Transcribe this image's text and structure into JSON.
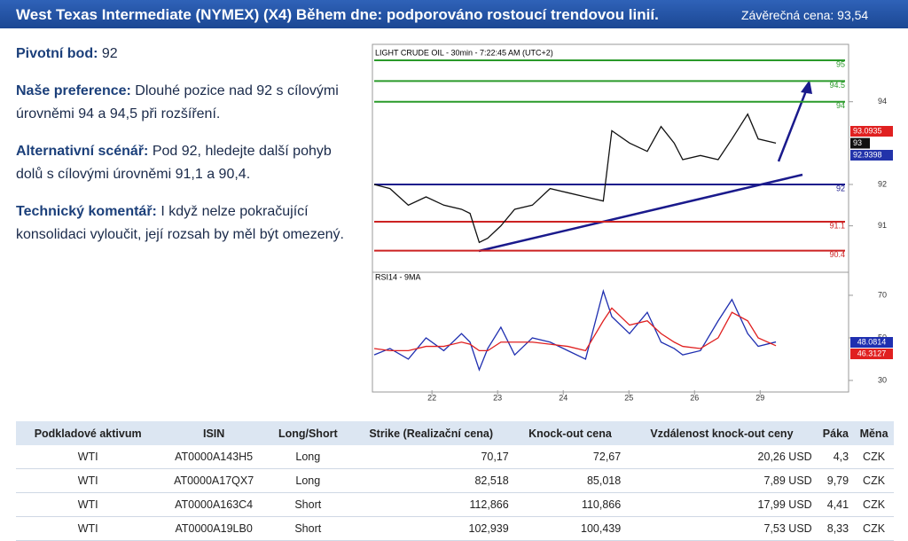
{
  "header": {
    "title": "West Texas Intermediate (NYMEX) (X4) Během dne: podporováno rostoucí trendovou linií.",
    "close": "Závěrečná cena: 93,54"
  },
  "commentary": [
    {
      "label": "Pivotní bod:",
      "text": "92"
    },
    {
      "label": "Naše preference:",
      "text": "Dlouhé pozice nad 92 s cílovými úrovněmi 94 a 94,5 při  rozšíření."
    },
    {
      "label": "Alternativní scénář:",
      "text": "Pod 92, hledejte další pohyb dolů s cílovými úrovněmi 91,1 a 90,4."
    },
    {
      "label": "Technický komentář:",
      "text": "I když nelze pokračující konsolidaci vyloučit, její rozsah by měl být omezený."
    }
  ],
  "chart_data": [
    {
      "type": "line",
      "title": "LIGHT CRUDE OIL - 30min - 7:22:45 AM (UTC+2)",
      "x": [
        0.12,
        0.36,
        0.64,
        0.91,
        1.18,
        1.45,
        1.58,
        1.72,
        1.85,
        2.05,
        2.26,
        2.53,
        2.8,
        3.07,
        3.34,
        3.61,
        3.74,
        4.01,
        4.28,
        4.49,
        4.69,
        4.82,
        5.09,
        5.36,
        5.57,
        5.81,
        5.97,
        6.24
      ],
      "series": [
        {
          "color": "#111111",
          "values": [
            92.0,
            91.9,
            91.5,
            91.7,
            91.5,
            91.4,
            91.3,
            90.6,
            90.7,
            91.0,
            91.4,
            91.5,
            91.9,
            91.8,
            91.7,
            91.6,
            93.3,
            93.0,
            92.8,
            93.4,
            93.0,
            92.6,
            92.7,
            92.6,
            93.1,
            93.7,
            93.1,
            93.0
          ]
        }
      ],
      "xlim": [
        0.12,
        7.32
      ],
      "ylim": [
        89.92,
        95.28
      ],
      "yticks": [
        91,
        92,
        94
      ],
      "levels": [
        {
          "value": 95,
          "color": "#2a9a2a"
        },
        {
          "value": 94.5,
          "color": "#2a9a2a"
        },
        {
          "value": 94,
          "color": "#2a9a2a"
        },
        {
          "value": 92,
          "color": "#1a1a8c"
        },
        {
          "value": 91.1,
          "color": "#cc2222"
        },
        {
          "value": 90.4,
          "color": "#cc2222"
        }
      ],
      "price_labels": [
        {
          "value": 93.0935,
          "color": "#e02020"
        },
        {
          "value": 93,
          "color": "#111111"
        },
        {
          "value": 92.9398,
          "color": "#2233aa"
        }
      ]
    },
    {
      "type": "line",
      "title": "RSI14 - 9MA",
      "x": [
        0.12,
        0.36,
        0.64,
        0.91,
        1.18,
        1.45,
        1.58,
        1.72,
        1.85,
        2.05,
        2.26,
        2.53,
        2.8,
        3.07,
        3.34,
        3.61,
        3.74,
        4.01,
        4.28,
        4.49,
        4.69,
        4.82,
        5.09,
        5.36,
        5.57,
        5.81,
        5.97,
        6.24
      ],
      "series": [
        {
          "color": "#1f2fb0",
          "values": [
            42,
            45,
            40,
            50,
            44,
            52,
            48,
            35,
            45,
            55,
            42,
            50,
            48,
            44,
            40,
            72,
            60,
            52,
            62,
            48,
            45,
            42,
            44,
            58,
            68,
            52,
            46,
            48.0814
          ]
        },
        {
          "color": "#e02020",
          "values": [
            45,
            44,
            44,
            46,
            46,
            48,
            47,
            44,
            44,
            48,
            48,
            48,
            47,
            46,
            44,
            58,
            64,
            56,
            58,
            52,
            48,
            46,
            45,
            50,
            62,
            58,
            50,
            46.3127
          ]
        }
      ],
      "xlim": [
        0.12,
        7.32
      ],
      "ylim": [
        25.4,
        80.4
      ],
      "yticks": [
        30,
        50,
        70
      ],
      "xticks": [
        {
          "value": 1,
          "label": "22"
        },
        {
          "value": 2,
          "label": "23"
        },
        {
          "value": 3,
          "label": "24"
        },
        {
          "value": 4,
          "label": "25"
        },
        {
          "value": 5,
          "label": "26"
        },
        {
          "value": 6,
          "label": "29"
        }
      ]
    }
  ],
  "table": {
    "columns": [
      "Podkladové aktivum",
      "ISIN",
      "Long/Short",
      "Strike (Realizační cena)",
      "Knock-out cena",
      "Vzdálenost knock-out ceny",
      "Páka",
      "Měna"
    ],
    "rows": [
      [
        "WTI",
        "AT0000A143H5",
        "Long",
        "70,17",
        "72,67",
        "20,26 USD",
        "4,3",
        "CZK"
      ],
      [
        "WTI",
        "AT0000A17QX7",
        "Long",
        "82,518",
        "85,018",
        "7,89 USD",
        "9,79",
        "CZK"
      ],
      [
        "WTI",
        "AT0000A163C4",
        "Short",
        "112,866",
        "110,866",
        "17,99 USD",
        "4,41",
        "CZK"
      ],
      [
        "WTI",
        "AT0000A19LB0",
        "Short",
        "102,939",
        "100,439",
        "7,53 USD",
        "8,33",
        "CZK"
      ]
    ]
  }
}
